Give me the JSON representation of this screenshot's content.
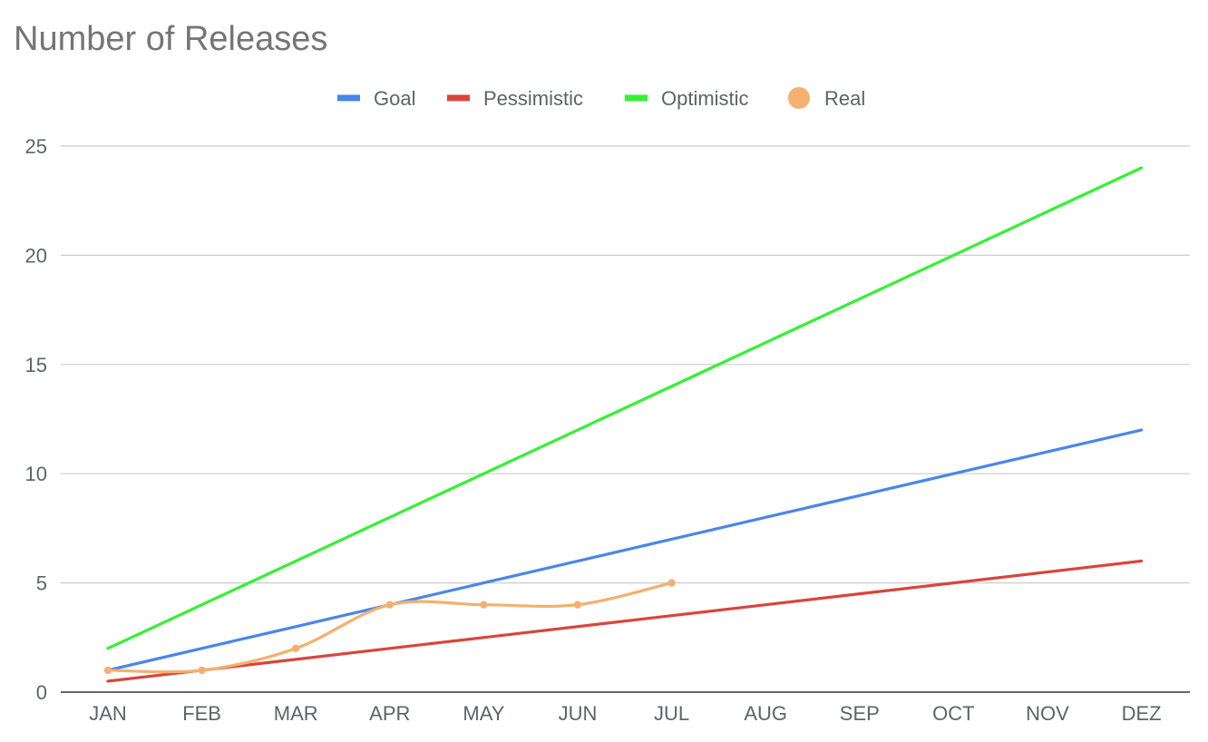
{
  "chart_data": {
    "type": "line",
    "title": "Number of Releases",
    "xlabel": "",
    "ylabel": "",
    "categories": [
      "JAN",
      "FEB",
      "MAR",
      "APR",
      "MAY",
      "JUN",
      "JUL",
      "AUG",
      "SEP",
      "OCT",
      "NOV",
      "DEZ"
    ],
    "ylim": [
      0,
      25
    ],
    "yticks": [
      "0",
      "5",
      "10",
      "15",
      "20",
      "25"
    ],
    "grid": true,
    "legend_position": "top",
    "series": [
      {
        "name": "Goal",
        "color": "#4a86e8",
        "marker": "line",
        "smooth": false,
        "points": false,
        "values": [
          1,
          2,
          3,
          4,
          5,
          6,
          7,
          8,
          9,
          10,
          11,
          12
        ]
      },
      {
        "name": "Pessimistic",
        "color": "#d9453b",
        "marker": "line",
        "smooth": false,
        "points": false,
        "values": [
          0.5,
          1,
          1.5,
          2,
          2.5,
          3,
          3.5,
          4,
          4.5,
          5,
          5.5,
          6
        ]
      },
      {
        "name": "Optimistic",
        "color": "#33f233",
        "marker": "line",
        "smooth": false,
        "points": false,
        "values": [
          2,
          4,
          6,
          8,
          10,
          12,
          14,
          16,
          18,
          20,
          22,
          24
        ]
      },
      {
        "name": "Real",
        "color": "#f4b06e",
        "marker": "circle",
        "smooth": true,
        "points": true,
        "values": [
          1,
          1,
          2,
          4,
          4,
          4,
          5,
          null,
          null,
          null,
          null,
          null
        ]
      }
    ]
  }
}
